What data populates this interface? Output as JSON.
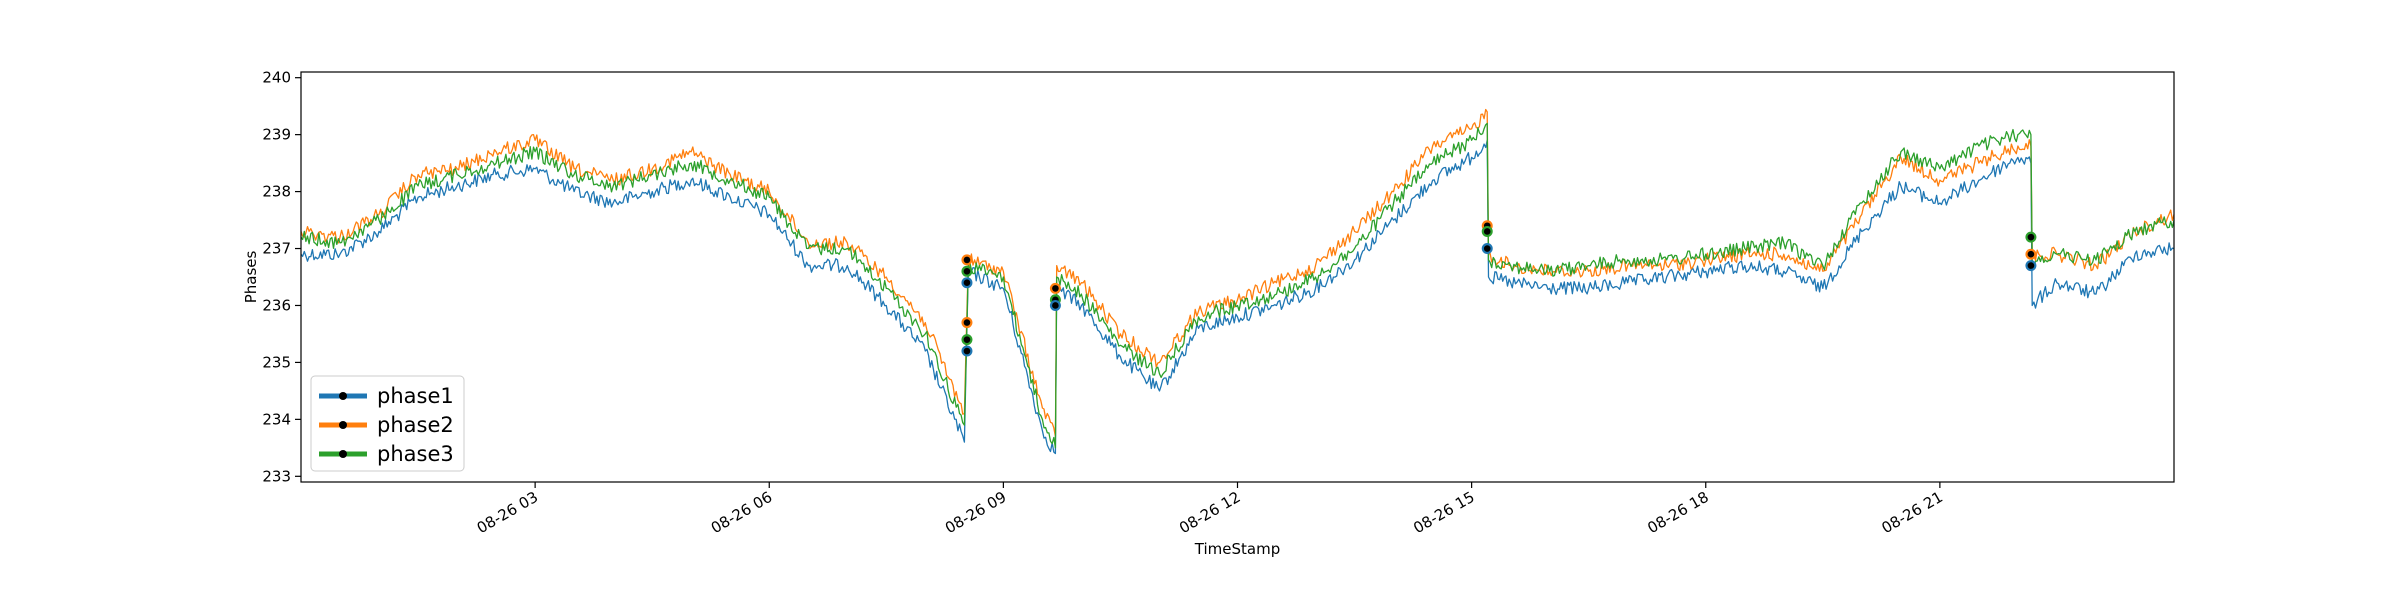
{
  "chart_data": {
    "type": "line",
    "title": "",
    "xlabel": "TimeStamp",
    "ylabel": "Phases",
    "xlim": [
      "2019-08-26 00:00",
      "2019-08-27 00:00"
    ],
    "ylim": [
      232.9,
      240.1
    ],
    "yticks": [
      233,
      234,
      235,
      236,
      237,
      238,
      239,
      240
    ],
    "xticks": [
      {
        "t": "2019-08-26 03:00",
        "label": "08-26 03"
      },
      {
        "t": "2019-08-26 06:00",
        "label": "08-26 06"
      },
      {
        "t": "2019-08-26 09:00",
        "label": "08-26 09"
      },
      {
        "t": "2019-08-26 12:00",
        "label": "08-26 12"
      },
      {
        "t": "2019-08-26 15:00",
        "label": "08-26 15"
      },
      {
        "t": "2019-08-26 18:00",
        "label": "08-26 18"
      },
      {
        "t": "2019-08-26 21:00",
        "label": "08-26 21"
      }
    ],
    "grid": false,
    "legend_position": "lower-left",
    "series": [
      {
        "name": "phase1",
        "color": "#1f77b4",
        "points": [
          [
            "2019-08-26 00:00",
            236.9
          ],
          [
            "2019-08-26 00:30",
            236.9
          ],
          [
            "2019-08-26 01:00",
            237.3
          ],
          [
            "2019-08-26 01:30",
            237.9
          ],
          [
            "2019-08-26 02:00",
            238.1
          ],
          [
            "2019-08-26 02:30",
            238.3
          ],
          [
            "2019-08-26 03:00",
            238.4
          ],
          [
            "2019-08-26 03:30",
            238.0
          ],
          [
            "2019-08-26 04:00",
            237.8
          ],
          [
            "2019-08-26 04:30",
            238.0
          ],
          [
            "2019-08-26 05:00",
            238.2
          ],
          [
            "2019-08-26 05:30",
            237.9
          ],
          [
            "2019-08-26 06:00",
            237.6
          ],
          [
            "2019-08-26 06:30",
            236.7
          ],
          [
            "2019-08-26 07:00",
            236.7
          ],
          [
            "2019-08-26 07:30",
            236.0
          ],
          [
            "2019-08-26 08:00",
            235.2
          ],
          [
            "2019-08-26 08:30",
            233.6
          ],
          [
            "2019-08-26 08:33",
            236.6
          ],
          [
            "2019-08-26 09:00",
            236.3
          ],
          [
            "2019-08-26 09:30",
            233.8
          ],
          [
            "2019-08-26 09:40",
            233.4
          ],
          [
            "2019-08-26 09:41",
            236.3
          ],
          [
            "2019-08-26 10:00",
            236.0
          ],
          [
            "2019-08-26 10:30",
            235.1
          ],
          [
            "2019-08-26 11:00",
            234.5
          ],
          [
            "2019-08-26 11:30",
            235.6
          ],
          [
            "2019-08-26 12:00",
            235.8
          ],
          [
            "2019-08-26 12:30",
            236.0
          ],
          [
            "2019-08-26 13:00",
            236.3
          ],
          [
            "2019-08-26 13:30",
            236.8
          ],
          [
            "2019-08-26 14:00",
            237.5
          ],
          [
            "2019-08-26 14:30",
            238.2
          ],
          [
            "2019-08-26 15:00",
            238.6
          ],
          [
            "2019-08-26 15:12",
            238.9
          ],
          [
            "2019-08-26 15:13",
            236.5
          ],
          [
            "2019-08-26 15:30",
            236.4
          ],
          [
            "2019-08-26 16:00",
            236.3
          ],
          [
            "2019-08-26 16:30",
            236.3
          ],
          [
            "2019-08-26 17:00",
            236.4
          ],
          [
            "2019-08-26 17:30",
            236.5
          ],
          [
            "2019-08-26 18:00",
            236.6
          ],
          [
            "2019-08-26 18:30",
            236.7
          ],
          [
            "2019-08-26 19:00",
            236.6
          ],
          [
            "2019-08-26 19:30",
            236.3
          ],
          [
            "2019-08-26 20:00",
            237.3
          ],
          [
            "2019-08-26 20:30",
            238.1
          ],
          [
            "2019-08-26 21:00",
            237.8
          ],
          [
            "2019-08-26 21:30",
            238.2
          ],
          [
            "2019-08-26 22:00",
            238.6
          ],
          [
            "2019-08-26 22:10",
            238.5
          ],
          [
            "2019-08-26 22:11",
            236.0
          ],
          [
            "2019-08-26 22:30",
            236.4
          ],
          [
            "2019-08-26 23:00",
            236.2
          ],
          [
            "2019-08-26 23:30",
            236.9
          ],
          [
            "2019-08-27 00:00",
            237.0
          ]
        ]
      },
      {
        "name": "phase2",
        "color": "#ff7f0e",
        "points": [
          [
            "2019-08-26 00:00",
            237.3
          ],
          [
            "2019-08-26 00:30",
            237.2
          ],
          [
            "2019-08-26 01:00",
            237.6
          ],
          [
            "2019-08-26 01:30",
            238.3
          ],
          [
            "2019-08-26 02:00",
            238.4
          ],
          [
            "2019-08-26 02:30",
            238.7
          ],
          [
            "2019-08-26 03:00",
            238.9
          ],
          [
            "2019-08-26 03:30",
            238.4
          ],
          [
            "2019-08-26 04:00",
            238.2
          ],
          [
            "2019-08-26 04:30",
            238.4
          ],
          [
            "2019-08-26 05:00",
            238.7
          ],
          [
            "2019-08-26 05:30",
            238.3
          ],
          [
            "2019-08-26 06:00",
            238.0
          ],
          [
            "2019-08-26 06:30",
            237.1
          ],
          [
            "2019-08-26 07:00",
            237.1
          ],
          [
            "2019-08-26 07:30",
            236.5
          ],
          [
            "2019-08-26 08:00",
            235.7
          ],
          [
            "2019-08-26 08:30",
            234.1
          ],
          [
            "2019-08-26 08:33",
            236.8
          ],
          [
            "2019-08-26 09:00",
            236.6
          ],
          [
            "2019-08-26 09:30",
            234.2
          ],
          [
            "2019-08-26 09:40",
            233.7
          ],
          [
            "2019-08-26 09:41",
            236.7
          ],
          [
            "2019-08-26 10:00",
            236.4
          ],
          [
            "2019-08-26 10:30",
            235.5
          ],
          [
            "2019-08-26 11:00",
            235.0
          ],
          [
            "2019-08-26 11:30",
            235.9
          ],
          [
            "2019-08-26 12:00",
            236.1
          ],
          [
            "2019-08-26 12:30",
            236.4
          ],
          [
            "2019-08-26 13:00",
            236.7
          ],
          [
            "2019-08-26 13:30",
            237.3
          ],
          [
            "2019-08-26 14:00",
            238.0
          ],
          [
            "2019-08-26 14:30",
            238.8
          ],
          [
            "2019-08-26 15:00",
            239.1
          ],
          [
            "2019-08-26 15:12",
            239.4
          ],
          [
            "2019-08-26 15:13",
            236.9
          ],
          [
            "2019-08-26 15:30",
            236.7
          ],
          [
            "2019-08-26 16:00",
            236.6
          ],
          [
            "2019-08-26 16:30",
            236.6
          ],
          [
            "2019-08-26 17:00",
            236.7
          ],
          [
            "2019-08-26 17:30",
            236.7
          ],
          [
            "2019-08-26 18:00",
            236.8
          ],
          [
            "2019-08-26 18:30",
            236.9
          ],
          [
            "2019-08-26 19:00",
            236.9
          ],
          [
            "2019-08-26 19:30",
            236.6
          ],
          [
            "2019-08-26 20:00",
            237.6
          ],
          [
            "2019-08-26 20:30",
            238.6
          ],
          [
            "2019-08-26 21:00",
            238.2
          ],
          [
            "2019-08-26 21:30",
            238.5
          ],
          [
            "2019-08-26 22:00",
            238.8
          ],
          [
            "2019-08-26 22:10",
            238.8
          ],
          [
            "2019-08-26 22:11",
            236.9
          ],
          [
            "2019-08-26 22:30",
            236.9
          ],
          [
            "2019-08-26 23:00",
            236.7
          ],
          [
            "2019-08-26 23:30",
            237.3
          ],
          [
            "2019-08-27 00:00",
            237.6
          ]
        ]
      },
      {
        "name": "phase3",
        "color": "#2ca02c",
        "points": [
          [
            "2019-08-26 00:00",
            237.2
          ],
          [
            "2019-08-26 00:30",
            237.1
          ],
          [
            "2019-08-26 01:00",
            237.5
          ],
          [
            "2019-08-26 01:30",
            238.1
          ],
          [
            "2019-08-26 02:00",
            238.3
          ],
          [
            "2019-08-26 02:30",
            238.5
          ],
          [
            "2019-08-26 03:00",
            238.7
          ],
          [
            "2019-08-26 03:30",
            238.3
          ],
          [
            "2019-08-26 04:00",
            238.1
          ],
          [
            "2019-08-26 04:30",
            238.3
          ],
          [
            "2019-08-26 05:00",
            238.5
          ],
          [
            "2019-08-26 05:30",
            238.2
          ],
          [
            "2019-08-26 06:00",
            237.9
          ],
          [
            "2019-08-26 06:30",
            237.0
          ],
          [
            "2019-08-26 07:00",
            237.0
          ],
          [
            "2019-08-26 07:30",
            236.3
          ],
          [
            "2019-08-26 08:00",
            235.5
          ],
          [
            "2019-08-26 08:30",
            233.9
          ],
          [
            "2019-08-26 08:33",
            236.7
          ],
          [
            "2019-08-26 09:00",
            236.5
          ],
          [
            "2019-08-26 09:30",
            234.0
          ],
          [
            "2019-08-26 09:40",
            233.5
          ],
          [
            "2019-08-26 09:41",
            236.5
          ],
          [
            "2019-08-26 10:00",
            236.2
          ],
          [
            "2019-08-26 10:30",
            235.3
          ],
          [
            "2019-08-26 11:00",
            234.8
          ],
          [
            "2019-08-26 11:30",
            235.8
          ],
          [
            "2019-08-26 12:00",
            236.0
          ],
          [
            "2019-08-26 12:30",
            236.2
          ],
          [
            "2019-08-26 13:00",
            236.5
          ],
          [
            "2019-08-26 13:30",
            237.0
          ],
          [
            "2019-08-26 14:00",
            237.8
          ],
          [
            "2019-08-26 14:30",
            238.5
          ],
          [
            "2019-08-26 15:00",
            238.9
          ],
          [
            "2019-08-26 15:12",
            239.2
          ],
          [
            "2019-08-26 15:13",
            236.8
          ],
          [
            "2019-08-26 15:30",
            236.7
          ],
          [
            "2019-08-26 16:00",
            236.6
          ],
          [
            "2019-08-26 16:30",
            236.7
          ],
          [
            "2019-08-26 17:00",
            236.8
          ],
          [
            "2019-08-26 17:30",
            236.8
          ],
          [
            "2019-08-26 18:00",
            236.9
          ],
          [
            "2019-08-26 18:30",
            237.0
          ],
          [
            "2019-08-26 19:00",
            237.1
          ],
          [
            "2019-08-26 19:30",
            236.7
          ],
          [
            "2019-08-26 20:00",
            237.8
          ],
          [
            "2019-08-26 20:30",
            238.7
          ],
          [
            "2019-08-26 21:00",
            238.4
          ],
          [
            "2019-08-26 21:30",
            238.8
          ],
          [
            "2019-08-26 22:00",
            239.0
          ],
          [
            "2019-08-26 22:10",
            239.0
          ],
          [
            "2019-08-26 22:11",
            236.8
          ],
          [
            "2019-08-26 22:30",
            236.9
          ],
          [
            "2019-08-26 23:00",
            236.8
          ],
          [
            "2019-08-26 23:30",
            237.3
          ],
          [
            "2019-08-27 00:00",
            237.5
          ]
        ]
      }
    ],
    "markers": [
      {
        "t": "2019-08-26 08:32",
        "y": 236.8,
        "series": "phase2"
      },
      {
        "t": "2019-08-26 08:32",
        "y": 236.6,
        "series": "phase3"
      },
      {
        "t": "2019-08-26 08:32",
        "y": 236.4,
        "series": "phase1"
      },
      {
        "t": "2019-08-26 08:32",
        "y": 235.7,
        "series": "phase2"
      },
      {
        "t": "2019-08-26 08:32",
        "y": 235.4,
        "series": "phase3"
      },
      {
        "t": "2019-08-26 08:32",
        "y": 235.2,
        "series": "phase1"
      },
      {
        "t": "2019-08-26 09:40",
        "y": 236.3,
        "series": "phase2"
      },
      {
        "t": "2019-08-26 09:40",
        "y": 236.1,
        "series": "phase3"
      },
      {
        "t": "2019-08-26 09:40",
        "y": 236.0,
        "series": "phase1"
      },
      {
        "t": "2019-08-26 15:12",
        "y": 237.4,
        "series": "phase2"
      },
      {
        "t": "2019-08-26 15:12",
        "y": 237.3,
        "series": "phase3"
      },
      {
        "t": "2019-08-26 15:12",
        "y": 237.0,
        "series": "phase1"
      },
      {
        "t": "2019-08-26 22:10",
        "y": 237.2,
        "series": "phase3"
      },
      {
        "t": "2019-08-26 22:10",
        "y": 236.9,
        "series": "phase2"
      },
      {
        "t": "2019-08-26 22:10",
        "y": 236.7,
        "series": "phase1"
      }
    ]
  }
}
